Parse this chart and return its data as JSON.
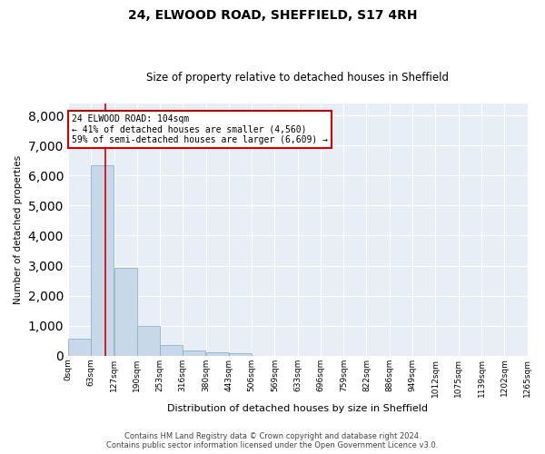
{
  "title": "24, ELWOOD ROAD, SHEFFIELD, S17 4RH",
  "subtitle": "Size of property relative to detached houses in Sheffield",
  "xlabel": "Distribution of detached houses by size in Sheffield",
  "ylabel": "Number of detached properties",
  "bar_color": "#c8d8e8",
  "bar_edge_color": "#7aaac8",
  "background_color": "#e8eef5",
  "property_size": 104,
  "annotation_title": "24 ELWOOD ROAD: 104sqm",
  "annotation_line1": "← 41% of detached houses are smaller (4,560)",
  "annotation_line2": "59% of semi-detached houses are larger (6,609) →",
  "annotation_box_color": "#cc0000",
  "vline_color": "#cc0000",
  "bin_edges": [
    0,
    63,
    127,
    190,
    253,
    316,
    380,
    443,
    506,
    569,
    633,
    696,
    759,
    822,
    886,
    949,
    1012,
    1075,
    1139,
    1202,
    1265
  ],
  "bin_labels": [
    "0sqm",
    "63sqm",
    "127sqm",
    "190sqm",
    "253sqm",
    "316sqm",
    "380sqm",
    "443sqm",
    "506sqm",
    "569sqm",
    "633sqm",
    "696sqm",
    "759sqm",
    "822sqm",
    "886sqm",
    "949sqm",
    "1012sqm",
    "1075sqm",
    "1139sqm",
    "1202sqm",
    "1265sqm"
  ],
  "counts": [
    580,
    6350,
    2920,
    980,
    350,
    170,
    110,
    75,
    0,
    0,
    0,
    0,
    0,
    0,
    0,
    0,
    0,
    0,
    0,
    0
  ],
  "ylim": [
    0,
    8400
  ],
  "yticks": [
    0,
    1000,
    2000,
    3000,
    4000,
    5000,
    6000,
    7000,
    8000
  ],
  "footer_line1": "Contains HM Land Registry data © Crown copyright and database right 2024.",
  "footer_line2": "Contains public sector information licensed under the Open Government Licence v3.0."
}
